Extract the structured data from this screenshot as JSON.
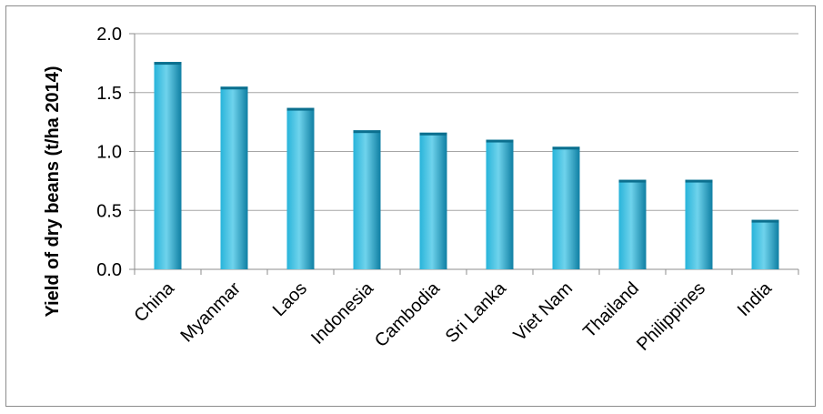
{
  "chart_data": {
    "type": "bar",
    "title": "",
    "xlabel": "",
    "ylabel": "Yield of dry beans (t/ha 2014)",
    "categories": [
      "China",
      "Myanmar",
      "Laos",
      "Indonesia",
      "Cambodia",
      "Sri Lanka",
      "Viet Nam",
      "Thailand",
      "Philippines",
      "India"
    ],
    "values": [
      1.76,
      1.55,
      1.37,
      1.18,
      1.16,
      1.1,
      1.04,
      0.76,
      0.76,
      0.42
    ],
    "ylim": [
      0,
      2.0
    ],
    "yticks": [
      "0.0",
      "0.5",
      "1.0",
      "1.5",
      "2.0"
    ],
    "grid": true,
    "legend": "none",
    "colors": {
      "bar_light": "#6fd3ec",
      "bar_mid": "#28b4da",
      "bar_dark": "#0f7fa3",
      "bar_top": "#0b6f8e",
      "grid": "#a6a6a6",
      "axis": "#8c8c8c"
    }
  }
}
